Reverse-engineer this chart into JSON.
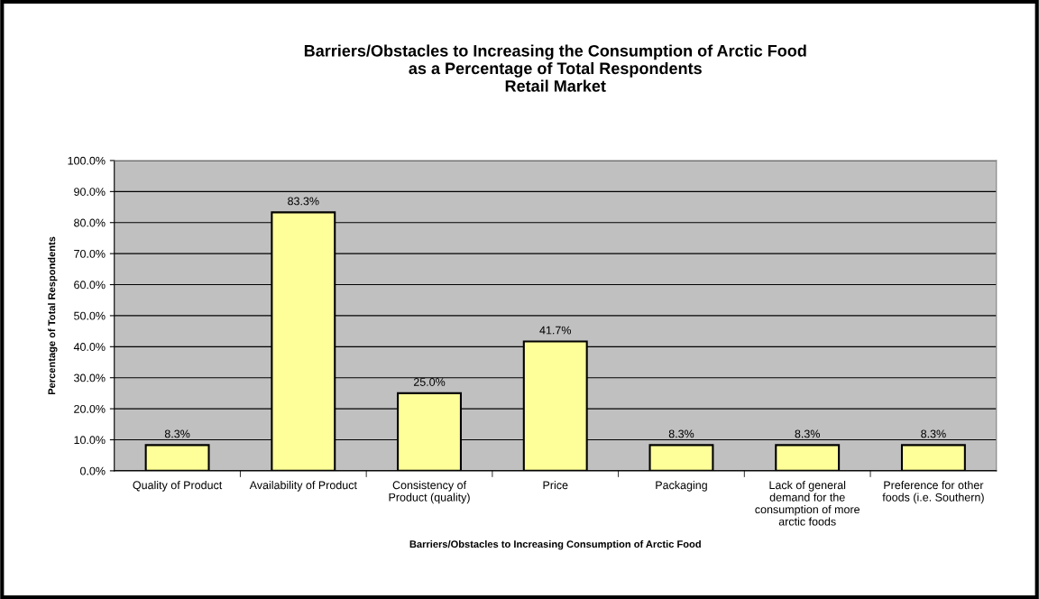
{
  "chart_data": {
    "type": "bar",
    "title": "Barriers/Obstacles to Increasing the Consumption of Arctic Food\nas a Percentage of Total Respondents\nRetail Market",
    "xlabel": "Barriers/Obstacles to Increasing Consumption of Arctic Food",
    "ylabel": "Percentage of Total Respondents",
    "categories": [
      "Quality of Product",
      "Availability of Product",
      "Consistency of\nProduct (quality)",
      "Price",
      "Packaging",
      "Lack of general\ndemand for the\nconsumption of more\narctic foods",
      "Preference for other\nfoods (i.e. Southern)"
    ],
    "values": [
      8.3,
      83.3,
      25.0,
      41.7,
      8.3,
      8.3,
      8.3
    ],
    "value_labels": [
      "8.3%",
      "83.3%",
      "25.0%",
      "41.7%",
      "8.3%",
      "8.3%",
      "8.3%"
    ],
    "color": "#ffff99",
    "ylim": [
      0,
      100
    ],
    "yticks": [
      {
        "value": 0,
        "label": "0.0%"
      },
      {
        "value": 10,
        "label": "10.0%"
      },
      {
        "value": 20,
        "label": "20.0%"
      },
      {
        "value": 30,
        "label": "30.0%"
      },
      {
        "value": 40,
        "label": "40.0%"
      },
      {
        "value": 50,
        "label": "50.0%"
      },
      {
        "value": 60,
        "label": "60.0%"
      },
      {
        "value": 70,
        "label": "70.0%"
      },
      {
        "value": 80,
        "label": "80.0%"
      },
      {
        "value": 90,
        "label": "90.0%"
      },
      {
        "value": 100,
        "label": "100.0%"
      }
    ],
    "grid": "y",
    "legend": false
  }
}
